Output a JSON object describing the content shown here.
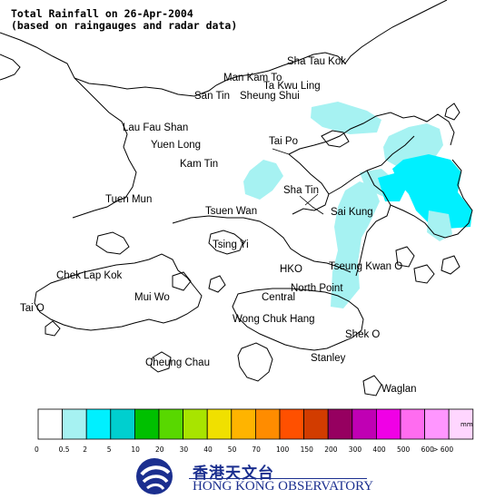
{
  "title": {
    "line1": "Total Rainfall on 26-Apr-2004",
    "line2": "(based on raingauges and radar data)"
  },
  "places": [
    "Sha Tau Kok",
    "Man Kam To",
    "Ta Kwu Ling",
    "San Tin",
    "Sheung Shui",
    "Lau Fau Shan",
    "Yuen Long",
    "Kam Tin",
    "Tai Po",
    "Sha Tin",
    "Tuen Mun",
    "Tsuen Wan",
    "Sai Kung",
    "Tsing Yi",
    "Chek Lap Kok",
    "HKO",
    "Tseung Kwan O",
    "Mui Wo",
    "North Point",
    "Central",
    "Tai O",
    "Wong Chuk Hang",
    "Shek O",
    "Cheung Chau",
    "Stanley",
    "Waglan"
  ],
  "legend": {
    "unit": "mm",
    "ticks": [
      "0",
      "0.5",
      "2",
      "5",
      "10",
      "20",
      "30",
      "40",
      "50",
      "70",
      "100",
      "150",
      "200",
      "300",
      "400",
      "500",
      "600",
      "> 600"
    ],
    "colors": [
      "#ffffff",
      "#a6f2f2",
      "#00f0ff",
      "#00cfcf",
      "#00c000",
      "#58d800",
      "#a8e400",
      "#f0e000",
      "#ffb400",
      "#ff8c00",
      "#ff5000",
      "#d23c00",
      "#960060",
      "#c000b4",
      "#f000e6",
      "#ff6cf0",
      "#ff96ff",
      "#ffd6ff"
    ]
  },
  "org": {
    "name_cn": "香港天文台",
    "name_en": "HONG KONG OBSERVATORY"
  },
  "colors": {
    "coast": "#000000",
    "text": "#000000",
    "brand": "#1b2f8f"
  }
}
